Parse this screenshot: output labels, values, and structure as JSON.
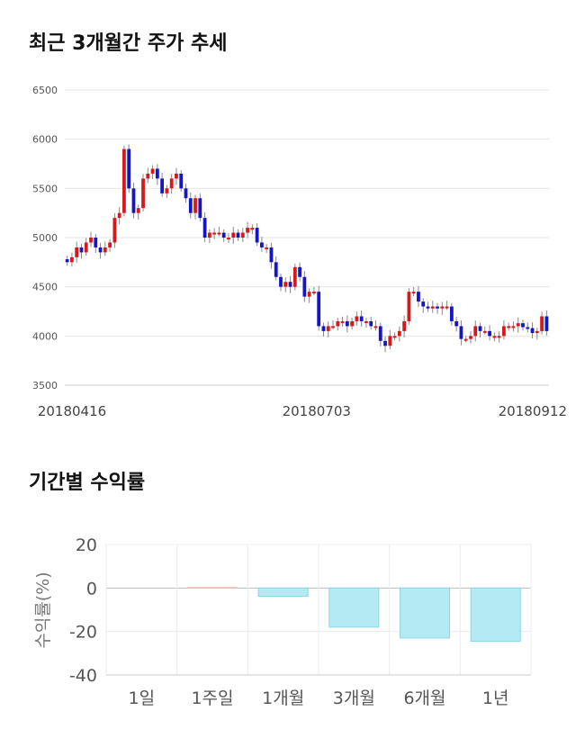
{
  "section_titles": {
    "price_trend": "최근 3개월간 주가 추세",
    "returns": "기간별 수익률"
  },
  "colors": {
    "up": "#d7191c",
    "down": "#1515c8",
    "positive_bar": "#f4b9b2",
    "negative_bar": "#b4eaf2",
    "negative_bar_stroke": "#8fd5e0"
  },
  "chart_data": [
    {
      "type": "candlestick",
      "title": "",
      "ylim": [
        3500,
        6500
      ],
      "y_ticks": [
        "3500",
        "4000",
        "4500",
        "5000",
        "5500",
        "6000",
        "6500"
      ],
      "x_tick_labels": [
        "20180416",
        "20180703",
        "20180912"
      ],
      "grid": true,
      "close": [
        4750,
        4800,
        4900,
        4850,
        4950,
        5000,
        4900,
        4850,
        4900,
        4950,
        5200,
        5250,
        5900,
        5500,
        5250,
        5300,
        5600,
        5650,
        5700,
        5600,
        5450,
        5500,
        5600,
        5650,
        5500,
        5400,
        5250,
        5400,
        5200,
        5000,
        5050,
        5050,
        5050,
        5000,
        5000,
        5050,
        5000,
        5050,
        5100,
        5100,
        4950,
        4900,
        4900,
        4750,
        4600,
        4500,
        4550,
        4500,
        4700,
        4600,
        4400,
        4450,
        4450,
        4100,
        4050,
        4100,
        4100,
        4150,
        4150,
        4100,
        4150,
        4200,
        4150,
        4150,
        4100,
        4100,
        3950,
        3900,
        4000,
        4000,
        4050,
        4150,
        4450,
        4450,
        4350,
        4300,
        4280,
        4300,
        4280,
        4300,
        4300,
        4150,
        4100,
        3970,
        3970,
        4000,
        4100,
        4050,
        4050,
        4000,
        4000,
        4000,
        4100,
        4100,
        4100,
        4130,
        4090,
        4080,
        4030,
        4050,
        4200,
        4050
      ]
    },
    {
      "type": "bar",
      "title": "",
      "ylabel": "수익률(%)",
      "ylim": [
        -40,
        20
      ],
      "y_ticks": [
        "20",
        "0",
        "-20",
        "-40"
      ],
      "categories": [
        "1일",
        "1주일",
        "1개월",
        "3개월",
        "6개월",
        "1년"
      ],
      "values": [
        0,
        0.5,
        -3.8,
        -18,
        -23,
        -24.5
      ],
      "grid": true
    }
  ]
}
